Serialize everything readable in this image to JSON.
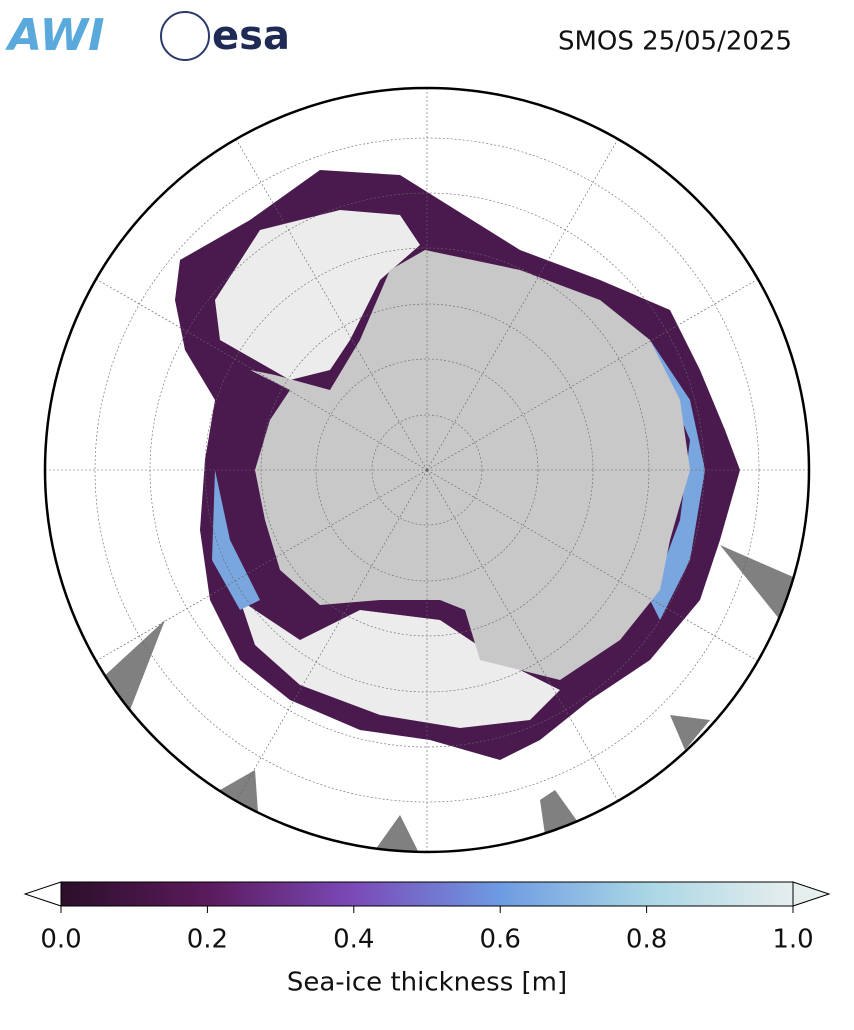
{
  "header": {
    "logos": [
      "AWI",
      "esa"
    ],
    "title": "SMOS 25/05/2025"
  },
  "colorbar": {
    "label": "Sea-ice thickness [m]",
    "range": [
      0,
      1
    ],
    "ticks": [
      {
        "value": 0,
        "label": "0.0"
      },
      0.2,
      0.4,
      0.6,
      0.8,
      {
        "value": 1,
        "label": "1.0"
      }
    ],
    "colors": [
      "#2b0f2a",
      "#5b1a5c",
      "#7a4ab8",
      "#6d9be2",
      "#a9d6e4",
      "#e6eeee"
    ]
  }
}
